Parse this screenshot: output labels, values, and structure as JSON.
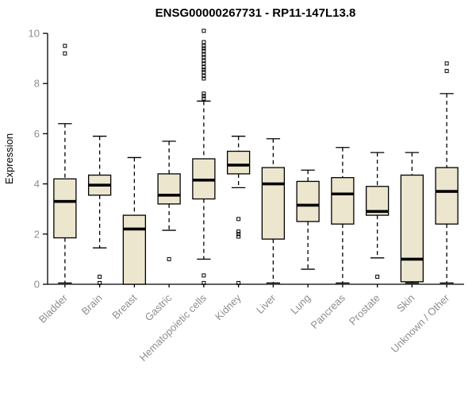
{
  "chart_data": {
    "type": "boxplot",
    "title": "ENSG00000267731 - RP11-147L13.8",
    "ylabel": "Expression",
    "xlabel": "",
    "ylim": [
      0,
      10
    ],
    "yticks": [
      0,
      2,
      4,
      6,
      8,
      10
    ],
    "grid": false,
    "legend": "none",
    "categories": [
      "Bladder",
      "Brain",
      "Breast",
      "Gastric",
      "Hematopoietic cells",
      "Kidney",
      "Liver",
      "Lung",
      "Pancreas",
      "Prostate",
      "Skin",
      "Unknown / Other"
    ],
    "series": [
      {
        "category": "Bladder",
        "whisker_low": 0.05,
        "q1": 1.85,
        "median": 3.3,
        "q3": 4.2,
        "whisker_high": 6.4,
        "outliers": [
          9.5,
          9.2
        ]
      },
      {
        "category": "Brain",
        "whisker_low": 1.45,
        "q1": 3.55,
        "median": 3.95,
        "q3": 4.35,
        "whisker_high": 5.9,
        "outliers": [
          0.3,
          0.05
        ]
      },
      {
        "category": "Breast",
        "whisker_low": 0,
        "q1": 0,
        "median": 2.2,
        "q3": 2.75,
        "whisker_high": 5.05,
        "outliers": []
      },
      {
        "category": "Gastric",
        "whisker_low": 2.15,
        "q1": 3.2,
        "median": 3.55,
        "q3": 4.4,
        "whisker_high": 5.7,
        "outliers": [
          1.0
        ]
      },
      {
        "category": "Hematopoietic cells",
        "whisker_low": 1.0,
        "q1": 3.4,
        "median": 4.15,
        "q3": 5.0,
        "whisker_high": 7.3,
        "outliers": [
          10.1,
          9.65,
          9.5,
          9.4,
          9.3,
          9.15,
          9.05,
          8.9,
          8.8,
          8.65,
          8.55,
          8.45,
          8.3,
          8.2,
          7.6,
          7.5,
          7.4,
          0.35,
          0.05
        ]
      },
      {
        "category": "Kidney",
        "whisker_low": 3.85,
        "q1": 4.4,
        "median": 4.75,
        "q3": 5.3,
        "whisker_high": 5.9,
        "outliers": [
          2.6,
          2.1,
          2.0,
          1.9,
          0.05
        ]
      },
      {
        "category": "Liver",
        "whisker_low": 0.05,
        "q1": 1.8,
        "median": 4.0,
        "q3": 4.65,
        "whisker_high": 5.8,
        "outliers": []
      },
      {
        "category": "Lung",
        "whisker_low": 0.6,
        "q1": 2.5,
        "median": 3.15,
        "q3": 4.1,
        "whisker_high": 4.55,
        "outliers": []
      },
      {
        "category": "Pancreas",
        "whisker_low": 0.05,
        "q1": 2.4,
        "median": 3.6,
        "q3": 4.25,
        "whisker_high": 5.45,
        "outliers": []
      },
      {
        "category": "Prostate",
        "whisker_low": 1.05,
        "q1": 2.75,
        "median": 2.9,
        "q3": 3.9,
        "whisker_high": 5.25,
        "outliers": [
          0.3
        ]
      },
      {
        "category": "Skin",
        "whisker_low": 0.05,
        "q1": 0.1,
        "median": 1.0,
        "q3": 4.35,
        "whisker_high": 5.25,
        "outliers": []
      },
      {
        "category": "Unknown / Other",
        "whisker_low": 0.05,
        "q1": 2.4,
        "median": 3.7,
        "q3": 4.65,
        "whisker_high": 7.6,
        "outliers": [
          8.8,
          8.5
        ]
      }
    ]
  },
  "style": {
    "background": "#ffffff",
    "box_fill": "#ece6cf",
    "box_stroke": "#000000",
    "median_color": "#000000",
    "axis_color": "#000000",
    "tick_label_color": "#8e8e8e",
    "title_color": "#000000"
  }
}
